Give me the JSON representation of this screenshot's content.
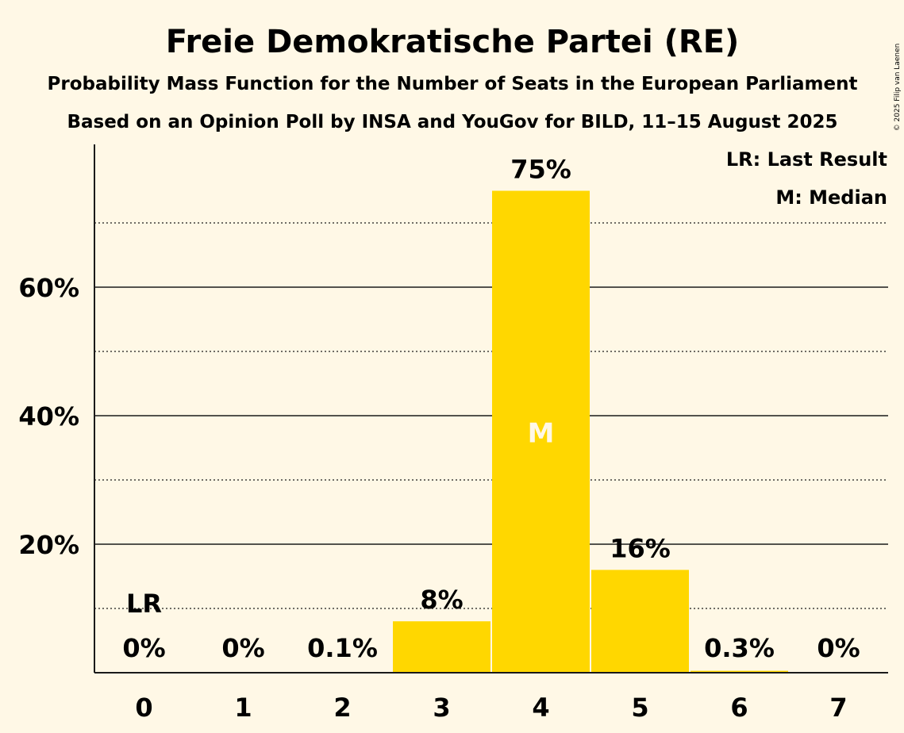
{
  "chart_data": {
    "type": "bar",
    "title": "Freie Demokratische Partei (RE)",
    "subtitle": "Probability Mass Function for the Number of Seats in the European Parliament",
    "source": "Based on an Opinion Poll by INSA and YouGov for BILD, 11–15 August 2025",
    "categories": [
      "0",
      "1",
      "2",
      "3",
      "4",
      "5",
      "6",
      "7"
    ],
    "values": [
      0,
      0,
      0.1,
      8,
      75,
      16,
      0.3,
      0
    ],
    "data_labels": [
      "0%",
      "0%",
      "0.1%",
      "8%",
      "75%",
      "16%",
      "0.3%",
      "0%"
    ],
    "y_ticks": [
      20,
      40,
      60
    ],
    "y_tick_labels": [
      "20%",
      "40%",
      "60%"
    ],
    "y_minor_ticks": [
      10,
      30,
      50,
      70
    ],
    "ylim": [
      0,
      82
    ],
    "bar_color": "#ffd700",
    "last_result": {
      "category": "0",
      "label": "LR"
    },
    "median": {
      "category": "4",
      "label": "M"
    },
    "legend": [
      "LR: Last Result",
      "M: Median"
    ],
    "xlabel": "",
    "ylabel": ""
  },
  "copyright": "© 2025 Filip van Laenen"
}
